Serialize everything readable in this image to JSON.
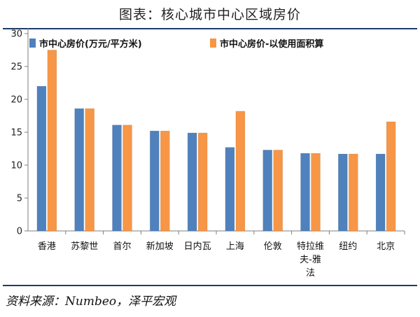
{
  "title": "图表：核心城市中心区域房价",
  "source": "资料来源：Numbeo，泽平宏观",
  "chart_data": {
    "type": "bar",
    "categories": [
      [
        "香港"
      ],
      [
        "苏黎世"
      ],
      [
        "首尔"
      ],
      [
        "新加坡"
      ],
      [
        "日内瓦"
      ],
      [
        "上海"
      ],
      [
        "伦敦"
      ],
      [
        "特拉维",
        "夫-雅",
        "法"
      ],
      [
        "纽约"
      ],
      [
        "北京"
      ]
    ],
    "series": [
      {
        "name": "市中心房价(万元/平方米)",
        "color": "#4f81bd",
        "values": [
          22.0,
          18.6,
          16.1,
          15.2,
          14.9,
          12.7,
          12.3,
          11.8,
          11.7,
          11.7
        ]
      },
      {
        "name": "市中心房价-以使用面积算",
        "color": "#f79646",
        "values": [
          27.5,
          18.6,
          16.1,
          15.2,
          14.9,
          18.2,
          12.3,
          11.8,
          11.7,
          16.6
        ]
      }
    ],
    "ylim": [
      0,
      30
    ],
    "yticks": [
      0,
      5,
      10,
      15,
      20,
      25,
      30
    ],
    "legend": "top"
  }
}
